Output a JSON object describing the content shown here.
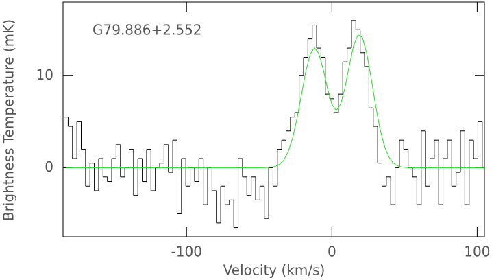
{
  "chart_data": {
    "type": "step",
    "annotation": "G79.886+2.552",
    "xlabel": "Velocity (km/s)",
    "ylabel": "Brightness Temperature (mK)",
    "xlim": [
      -185,
      105
    ],
    "ylim": [
      -7.5,
      18
    ],
    "xticks": [
      -100,
      0,
      100
    ],
    "yticks": [
      0,
      10
    ],
    "x": [
      -183,
      -180,
      -177,
      -174,
      -171,
      -168,
      -165,
      -162,
      -159,
      -156,
      -153,
      -150,
      -147,
      -144,
      -141,
      -138,
      -135,
      -132,
      -129,
      -126,
      -123,
      -120,
      -117,
      -114,
      -111,
      -108,
      -105,
      -102,
      -99,
      -96,
      -93,
      -90,
      -87,
      -84,
      -81,
      -78,
      -75,
      -72,
      -69,
      -66,
      -63,
      -60,
      -57,
      -54,
      -51,
      -48,
      -45,
      -42,
      -39,
      -36,
      -33,
      -30,
      -27,
      -24,
      -21,
      -18,
      -15,
      -12,
      -9,
      -6,
      -3,
      0,
      3,
      6,
      9,
      12,
      15,
      18,
      21,
      24,
      27,
      30,
      33,
      36,
      39,
      42,
      45,
      48,
      51,
      54,
      57,
      60,
      63,
      66,
      69,
      72,
      75,
      78,
      81,
      84,
      87,
      90,
      93,
      96,
      99,
      102,
      105
    ],
    "series": [
      {
        "color": "#000000",
        "values": [
          5.5,
          4.5,
          1,
          5,
          2,
          -2,
          0.5,
          -2.5,
          1,
          -1,
          -1.5,
          1,
          2.5,
          -1,
          0,
          2,
          -3,
          1,
          -1.5,
          2,
          -2.5,
          0,
          0.5,
          2.5,
          -0.5,
          3,
          -5,
          1,
          -2,
          0,
          -1.5,
          1,
          -4,
          0,
          -2.5,
          -6,
          -2,
          -4,
          -3.5,
          -6.5,
          1,
          -1,
          -3,
          -1,
          -3.5,
          -2,
          -5.5,
          0,
          -2,
          2,
          3,
          4,
          5.5,
          6,
          10,
          12,
          14,
          15.5,
          13,
          12,
          8,
          7.5,
          6,
          8,
          11.5,
          13,
          16,
          15,
          12.5,
          11,
          6.5,
          4.5,
          0.5,
          -2,
          -1,
          -4,
          0,
          3,
          2,
          0,
          -1,
          -4,
          4,
          -2,
          1,
          3,
          -4,
          1,
          3,
          -2,
          -0.5,
          4,
          -4,
          3,
          1,
          5,
          0
        ]
      },
      {
        "color": "#22dd22",
        "values": [
          0,
          0,
          0,
          0,
          0,
          0,
          0,
          0,
          0,
          0,
          0,
          0,
          0,
          0,
          0,
          0,
          0,
          0,
          0,
          0,
          0,
          0,
          0,
          0,
          0,
          0,
          0,
          0,
          0,
          0,
          0,
          0,
          0,
          0,
          0,
          0,
          0,
          0,
          0,
          0,
          0,
          0,
          0,
          0,
          0,
          0,
          0.02,
          0.05,
          0.14,
          0.37,
          0.85,
          1.76,
          3.24,
          5.35,
          7.88,
          10.41,
          12.31,
          13.04,
          12.41,
          10.72,
          8.61,
          6.91,
          6.23,
          6.87,
          8.67,
          11.09,
          13.28,
          14.46,
          14.16,
          12.43,
          9.77,
          6.87,
          4.32,
          2.44,
          1.23,
          0.55,
          0.22,
          0.08,
          0.03,
          0,
          0,
          0,
          0,
          0,
          0,
          0,
          0,
          0,
          0,
          0,
          0,
          0,
          0,
          0,
          0,
          0,
          0
        ]
      }
    ]
  }
}
